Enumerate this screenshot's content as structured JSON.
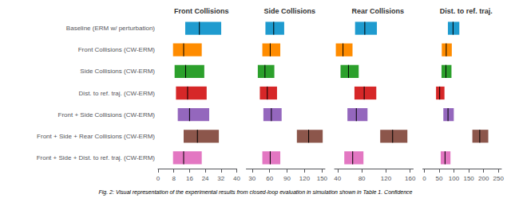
{
  "chart_data": [
    {
      "type": "bar",
      "orientation": "horizontal",
      "title": "Front Collisions",
      "categories": [
        "Baseline (ERM w/ perturbation)",
        "Front Collisions (CW-ERM)",
        "Side Collisions (CW-ERM)",
        "Dist. to ref. traj. (CW-ERM)",
        "Front + Side Collisions (CW-ERM)",
        "Front + Side + Rear Collisions (CW-ERM)",
        "Front + Side + Dist. to ref. traj. (CW-ERM)"
      ],
      "values": [
        21,
        13,
        14,
        15,
        16,
        20,
        13
      ],
      "low": [
        13.8,
        7.6,
        8.4,
        9.1,
        10.0,
        13.0,
        7.6
      ],
      "high": [
        32.1,
        22.2,
        23.5,
        24.7,
        26.0,
        30.9,
        22.2
      ],
      "colors": [
        "#1f9bcf",
        "#ff8c00",
        "#2ca02c",
        "#d62728",
        "#9467bd",
        "#8c564b",
        "#e377c2"
      ],
      "xlim": [
        0,
        40
      ],
      "xticks": [
        0,
        8,
        16,
        24,
        32,
        40
      ],
      "grid": false
    },
    {
      "type": "bar",
      "orientation": "horizontal",
      "title": "Side Collisions",
      "categories": [
        "Baseline (ERM w/ perturbation)",
        "Front Collisions (CW-ERM)",
        "Side Collisions (CW-ERM)",
        "Dist. to ref. traj. (CW-ERM)",
        "Front + Side Collisions (CW-ERM)",
        "Front + Side + Rear Collisions (CW-ERM)",
        "Front + Side + Dist. to ref. traj. (CW-ERM)"
      ],
      "values": [
        67,
        61,
        52,
        56,
        63,
        127,
        61
      ],
      "low": [
        52.8,
        47.5,
        39.7,
        43.2,
        49.3,
        106.8,
        47.5
      ],
      "high": [
        85.0,
        78.3,
        68.1,
        72.7,
        80.6,
        151.1,
        78.3
      ],
      "colors": [
        "#1f9bcf",
        "#ff8c00",
        "#2ca02c",
        "#d62728",
        "#9467bd",
        "#8c564b",
        "#e377c2"
      ],
      "xlim": [
        20,
        155
      ],
      "xticks": [
        30,
        60,
        90,
        120,
        150
      ],
      "grid": false,
      "tick_labels": "x"
    },
    {
      "type": "bar",
      "orientation": "horizontal",
      "title": "Rear Collisions",
      "categories": [
        "Baseline (ERM w/ perturbation)",
        "Front Collisions (CW-ERM)",
        "Side Collisions (CW-ERM)",
        "Dist. to ref. traj. (CW-ERM)",
        "Front + Side Collisions (CW-ERM)",
        "Front + Side + Rear Collisions (CW-ERM)",
        "Front + Side + Dist. to ref. traj. (CW-ERM)"
      ],
      "values": [
        85,
        49,
        58,
        84,
        71,
        131,
        65
      ],
      "low": [
        68.9,
        37.1,
        44.9,
        67.9,
        56.3,
        110.5,
        51.1
      ],
      "high": [
        105.0,
        64.7,
        74.9,
        104.0,
        89.5,
        155.4,
        82.8
      ],
      "colors": [
        "#1f9bcf",
        "#ff8c00",
        "#2ca02c",
        "#d62728",
        "#9467bd",
        "#8c564b",
        "#e377c2"
      ],
      "xlim": [
        35,
        165
      ],
      "xticks": [
        40,
        80,
        120,
        160
      ],
      "grid": false,
      "tick_labels": "x"
    },
    {
      "type": "bar",
      "orientation": "horizontal",
      "title": "Dist. to ref. traj.",
      "categories": [
        "Baseline (ERM w/ perturbation)",
        "Front Collisions (CW-ERM)",
        "Side Collisions (CW-ERM)",
        "Dist. to ref. traj. (CW-ERM)",
        "Front + Side Collisions (CW-ERM)",
        "Front + Side + Rear Collisions (CW-ERM)",
        "Front + Side + Dist. to ref. traj. (CW-ERM)"
      ],
      "values": [
        97,
        74,
        73,
        52,
        80,
        187,
        70
      ],
      "low": [
        79.6,
        59.0,
        58.1,
        39.7,
        64.3,
        162.1,
        55.4
      ],
      "high": [
        118.2,
        92.8,
        91.7,
        68.1,
        99.5,
        215.7,
        88.3
      ],
      "colors": [
        "#1f9bcf",
        "#ff8c00",
        "#2ca02c",
        "#d62728",
        "#9467bd",
        "#8c564b",
        "#e377c2"
      ],
      "xlim": [
        -5,
        260
      ],
      "xticks": [
        0,
        50,
        100,
        150,
        200,
        250
      ],
      "grid": false,
      "tick_labels": "x"
    }
  ],
  "caption": "Fig. 2: Visual representation of the experimental results from closed-loop evaluation in simulation shown in Table 1. Confidence"
}
